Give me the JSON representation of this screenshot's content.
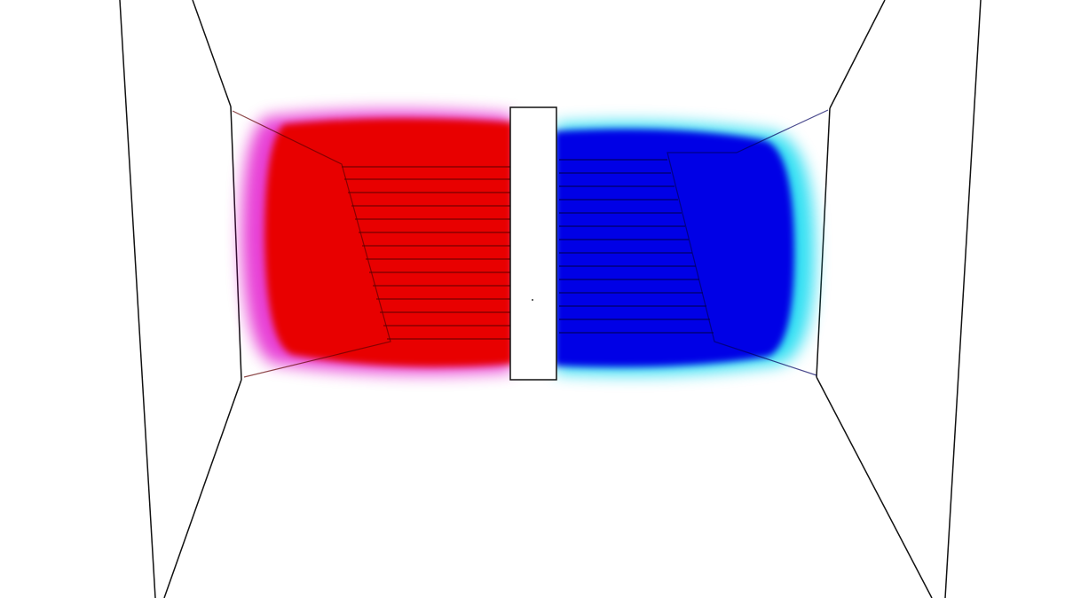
{
  "scene": {
    "background_color": "#ffffff",
    "line_color": "#111111",
    "left_region": {
      "core_color": "#e80000",
      "glow_color": "#e000c8"
    },
    "right_region": {
      "core_color": "#0000e6",
      "glow_color": "#00d8f0"
    },
    "divider_color": "#ffffff"
  }
}
